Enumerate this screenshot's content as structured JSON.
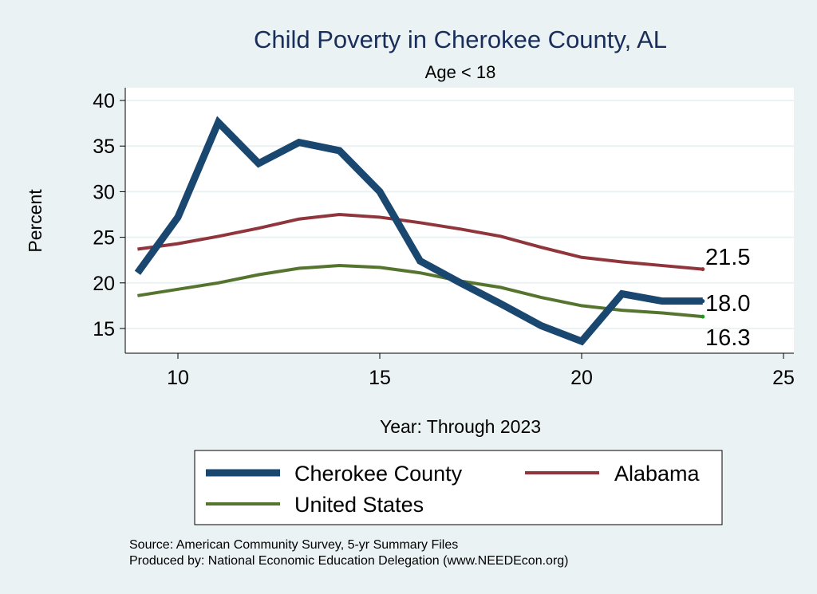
{
  "chart_data": {
    "type": "line",
    "title": "Child Poverty in Cherokee County, AL",
    "subtitle": "Age < 18",
    "xlabel": "Year: Through 2023",
    "ylabel": "Percent",
    "xlim": [
      8.9,
      26
    ],
    "ylim": [
      12.3,
      41.4
    ],
    "xticks": [
      10,
      15,
      20,
      25
    ],
    "yticks": [
      15,
      20,
      25,
      30,
      35,
      40
    ],
    "grid": true,
    "x": [
      9,
      10,
      11,
      12,
      13,
      14,
      15,
      16,
      17,
      18,
      19,
      20,
      21,
      22,
      23
    ],
    "series": [
      {
        "name": "Cherokee County",
        "color": "#1a476f",
        "values": [
          21.1,
          27.2,
          37.6,
          33.1,
          35.4,
          34.5,
          30.0,
          22.4,
          20.0,
          17.7,
          15.3,
          13.6,
          18.8,
          18.0,
          18.0
        ],
        "end_label": "18.0"
      },
      {
        "name": "Alabama",
        "color": "#90353b",
        "values": [
          23.7,
          24.3,
          25.1,
          26.0,
          27.0,
          27.5,
          27.2,
          26.6,
          25.9,
          25.1,
          23.9,
          22.8,
          22.3,
          21.9,
          21.5
        ],
        "end_label": "21.5"
      },
      {
        "name": "United States",
        "color": "#55752f",
        "values": [
          18.6,
          19.3,
          20.0,
          20.9,
          21.6,
          21.9,
          21.7,
          21.1,
          20.2,
          19.5,
          18.4,
          17.5,
          17.0,
          16.7,
          16.3
        ],
        "end_label": "16.3"
      }
    ],
    "legend_placement": "bottom",
    "notes": [
      "Source: American Community Survey, 5-yr Summary Files",
      "Produced by: National Economic Education Delegation (www.NEEDEcon.org)"
    ]
  }
}
